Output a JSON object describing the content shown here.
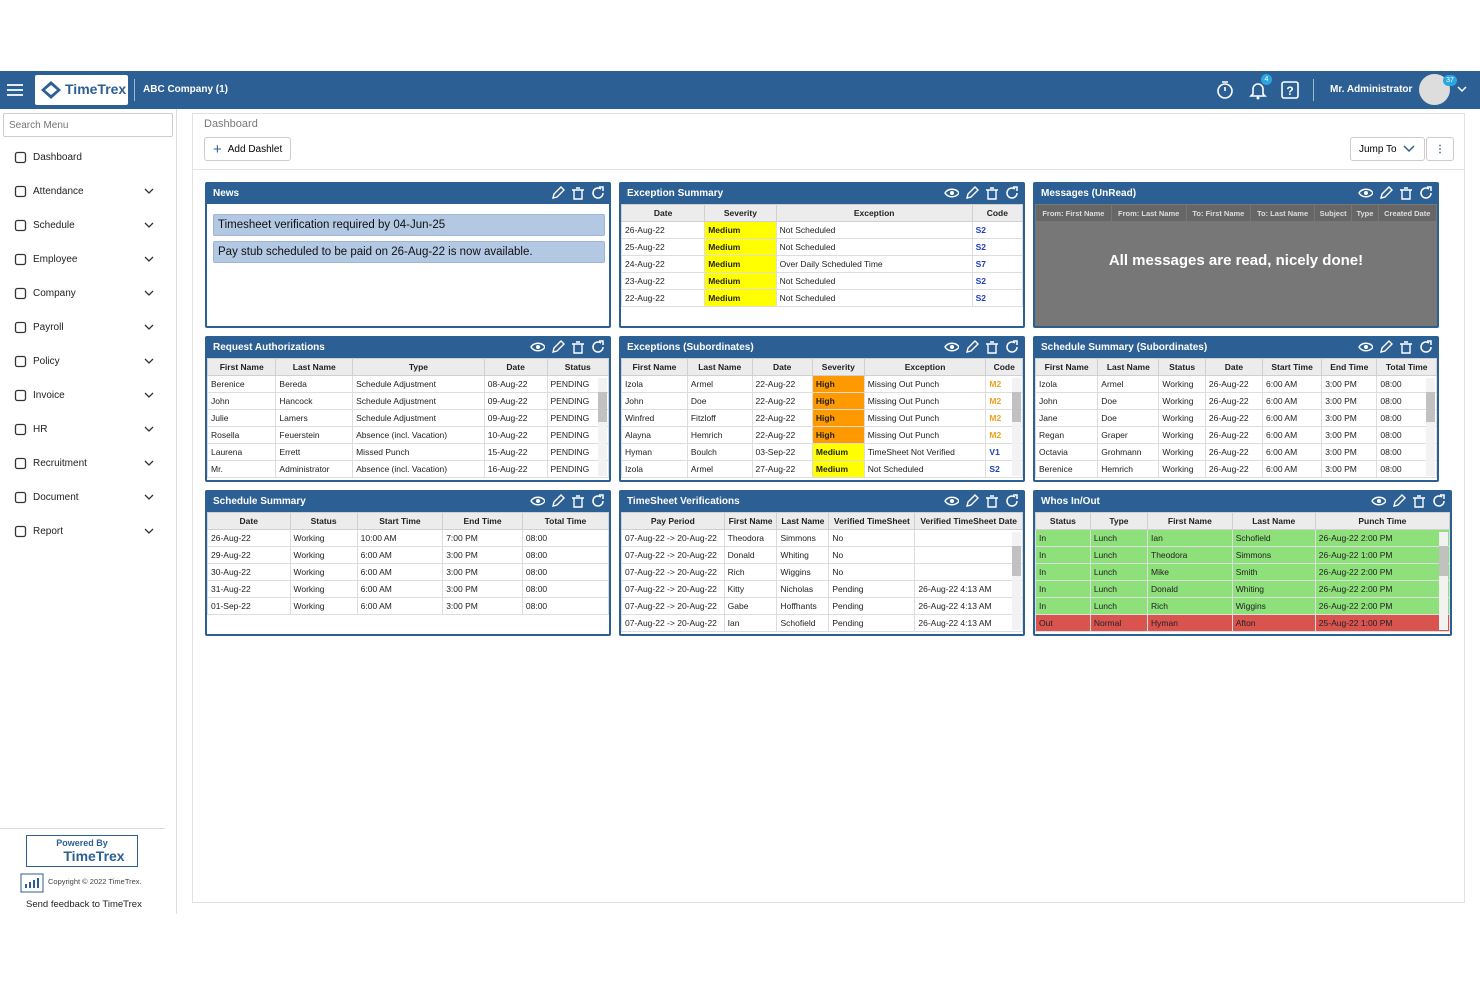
{
  "header": {
    "logo": "TimeTrex",
    "company": "ABC Company (1)",
    "notification_count": "4",
    "user": "Mr. Administrator",
    "user_badge": "37"
  },
  "sidebar": {
    "search_placeholder": "Search Menu",
    "menu": [
      "Dashboard",
      "Attendance",
      "Schedule",
      "Employee",
      "Company",
      "Payroll",
      "Policy",
      "Invoice",
      "HR",
      "Recruitment",
      "Document",
      "Report"
    ],
    "powered_by": "Powered By",
    "powered_logo": "TimeTrex",
    "copyright": "Copyright © 2022 TimeTrex.",
    "feedback": "Send feedback to TimeTrex"
  },
  "main": {
    "breadcrumb": "Dashboard",
    "add_button": "Add Dashlet",
    "jump_button": "Jump To"
  },
  "dashlets": [
    {
      "title": "News",
      "items": [
        "Timesheet verification required by 04-Jun-25",
        "Pay stub scheduled to be paid on 26-Aug-22 is now available."
      ]
    },
    {
      "title": "Exception Summary",
      "columns": [
        "Date",
        "Severity",
        "Exception",
        "Code"
      ],
      "rows": [
        [
          "26-Aug-22",
          "Medium",
          "Not Scheduled",
          "S2"
        ],
        [
          "25-Aug-22",
          "Medium",
          "Not Scheduled",
          "S2"
        ],
        [
          "24-Aug-22",
          "Medium",
          "Over Daily Scheduled Time",
          "S7"
        ],
        [
          "23-Aug-22",
          "Medium",
          "Not Scheduled",
          "S2"
        ],
        [
          "22-Aug-22",
          "Medium",
          "Not Scheduled",
          "S2"
        ]
      ],
      "highlight_column": 1,
      "row_colors": [
        "#ffff00",
        "#ffff00",
        "#ffff00",
        "#ffff00",
        "#ffff00"
      ],
      "code_column": 3,
      "code_colors": [
        "#1f3fbf",
        "#1f3fbf",
        "#1f3fbf",
        "#1f3fbf",
        "#1f3fbf"
      ]
    },
    {
      "title": "Messages (UnRead)",
      "columns": [
        "From: First Name",
        "From: Last Name",
        "To: First Name",
        "To: Last Name",
        "Subject",
        "Type",
        "Created Date"
      ],
      "message": "All messages are read, nicely done!"
    },
    {
      "title": "Request Authorizations",
      "columns": [
        "First Name",
        "Last Name",
        "Type",
        "Date",
        "Status"
      ],
      "rows": [
        [
          "Berenice",
          "Bereda",
          "Schedule Adjustment",
          "08-Aug-22",
          "PENDING"
        ],
        [
          "John",
          "Hancock",
          "Schedule Adjustment",
          "09-Aug-22",
          "PENDING"
        ],
        [
          "Julie",
          "Lamers",
          "Schedule Adjustment",
          "09-Aug-22",
          "PENDING"
        ],
        [
          "Rosella",
          "Feuerstein",
          "Absence (incl. Vacation)",
          "10-Aug-22",
          "PENDING"
        ],
        [
          "Laurena",
          "Errett",
          "Missed Punch",
          "15-Aug-22",
          "PENDING"
        ],
        [
          "Mr.",
          "Administrator",
          "Absence (incl. Vacation)",
          "16-Aug-22",
          "PENDING"
        ]
      ]
    },
    {
      "title": "Exceptions (Subordinates)",
      "columns": [
        "First Name",
        "Last Name",
        "Date",
        "Severity",
        "Exception",
        "Code"
      ],
      "rows": [
        [
          "Izola",
          "Armel",
          "22-Aug-22",
          "High",
          "Missing Out Punch",
          "M2"
        ],
        [
          "John",
          "Doe",
          "22-Aug-22",
          "High",
          "Missing Out Punch",
          "M2"
        ],
        [
          "Winfred",
          "Fitzloff",
          "22-Aug-22",
          "High",
          "Missing Out Punch",
          "M2"
        ],
        [
          "Alayna",
          "Hemrich",
          "22-Aug-22",
          "High",
          "Missing Out Punch",
          "M2"
        ],
        [
          "Hyman",
          "Boulch",
          "03-Sep-22",
          "Medium",
          "TimeSheet Not Verified",
          "V1"
        ],
        [
          "Izola",
          "Armel",
          "27-Aug-22",
          "Medium",
          "Not Scheduled",
          "S2"
        ]
      ],
      "highlight_column": 3,
      "row_colors": [
        "#ff9900",
        "#ff9900",
        "#ff9900",
        "#ff9900",
        "#ffff00",
        "#ffff00"
      ],
      "code_column": 5,
      "code_colors": [
        "#f0a020",
        "#f0a020",
        "#f0a020",
        "#f0a020",
        "#1f3fbf",
        "#1f3fbf"
      ]
    },
    {
      "title": "Schedule Summary (Subordinates)",
      "columns": [
        "First Name",
        "Last Name",
        "Status",
        "Date",
        "Start Time",
        "End Time",
        "Total Time"
      ],
      "rows": [
        [
          "Izola",
          "Armel",
          "Working",
          "26-Aug-22",
          "6:00 AM",
          "3:00 PM",
          "08:00"
        ],
        [
          "John",
          "Doe",
          "Working",
          "26-Aug-22",
          "6:00 AM",
          "3:00 PM",
          "08:00"
        ],
        [
          "Jane",
          "Doe",
          "Working",
          "26-Aug-22",
          "6:00 AM",
          "3:00 PM",
          "08:00"
        ],
        [
          "Regan",
          "Graper",
          "Working",
          "26-Aug-22",
          "6:00 AM",
          "3:00 PM",
          "08:00"
        ],
        [
          "Octavia",
          "Grohmann",
          "Working",
          "26-Aug-22",
          "6:00 AM",
          "3:00 PM",
          "08:00"
        ],
        [
          "Berenice",
          "Hemrich",
          "Working",
          "26-Aug-22",
          "6:00 AM",
          "3:00 PM",
          "08:00"
        ]
      ]
    },
    {
      "title": "Schedule Summary",
      "columns": [
        "Date",
        "Status",
        "Start Time",
        "End Time",
        "Total Time"
      ],
      "rows": [
        [
          "26-Aug-22",
          "Working",
          "10:00 AM",
          "7:00 PM",
          "08:00"
        ],
        [
          "29-Aug-22",
          "Working",
          "6:00 AM",
          "3:00 PM",
          "08:00"
        ],
        [
          "30-Aug-22",
          "Working",
          "6:00 AM",
          "3:00 PM",
          "08:00"
        ],
        [
          "31-Aug-22",
          "Working",
          "6:00 AM",
          "3:00 PM",
          "08:00"
        ],
        [
          "01-Sep-22",
          "Working",
          "6:00 AM",
          "3:00 PM",
          "08:00"
        ]
      ]
    },
    {
      "title": "TimeSheet Verifications",
      "columns": [
        "Pay Period",
        "First Name",
        "Last Name",
        "Verified TimeSheet",
        "Verified TimeSheet Date"
      ],
      "rows": [
        [
          "07-Aug-22 -> 20-Aug-22",
          "Theodora",
          "Simmons",
          "No",
          null
        ],
        [
          "07-Aug-22 -> 20-Aug-22",
          "Donald",
          "Whiting",
          "No",
          null
        ],
        [
          "07-Aug-22 -> 20-Aug-22",
          "Rich",
          "Wiggins",
          "No",
          null
        ],
        [
          "07-Aug-22 -> 20-Aug-22",
          "Kitty",
          "Nicholas",
          "Pending",
          "26-Aug-22 4:13 AM"
        ],
        [
          "07-Aug-22 -> 20-Aug-22",
          "Gabe",
          "Hoffhants",
          "Pending",
          "26-Aug-22 4:13 AM"
        ],
        [
          "07-Aug-22 -> 20-Aug-22",
          "Ian",
          "Schofield",
          "Pending",
          "26-Aug-22 4:13 AM"
        ]
      ]
    },
    {
      "title": "Whos In/Out",
      "columns": [
        "Status",
        "Type",
        "First Name",
        "Last Name",
        "Punch Time"
      ],
      "rows": [
        [
          "In",
          "Lunch",
          "Ian",
          "Schofield",
          "26-Aug-22 2:00 PM"
        ],
        [
          "In",
          "Lunch",
          "Theodora",
          "Simmons",
          "26-Aug-22 1:00 PM"
        ],
        [
          "In",
          "Lunch",
          "Mike",
          "Smith",
          "26-Aug-22 2:00 PM"
        ],
        [
          "In",
          "Lunch",
          "Donald",
          "Whiting",
          "26-Aug-22 2:00 PM"
        ],
        [
          "In",
          "Lunch",
          "Rich",
          "Wiggins",
          "26-Aug-22 2:00 PM"
        ],
        [
          "Out",
          "Normal",
          "Hyman",
          "Afton",
          "25-Aug-22 1:00 PM"
        ]
      ],
      "row_colors": [
        "#8de07a",
        "#8de07a",
        "#8de07a",
        "#8de07a",
        "#8de07a",
        "#d9534f"
      ]
    }
  ]
}
